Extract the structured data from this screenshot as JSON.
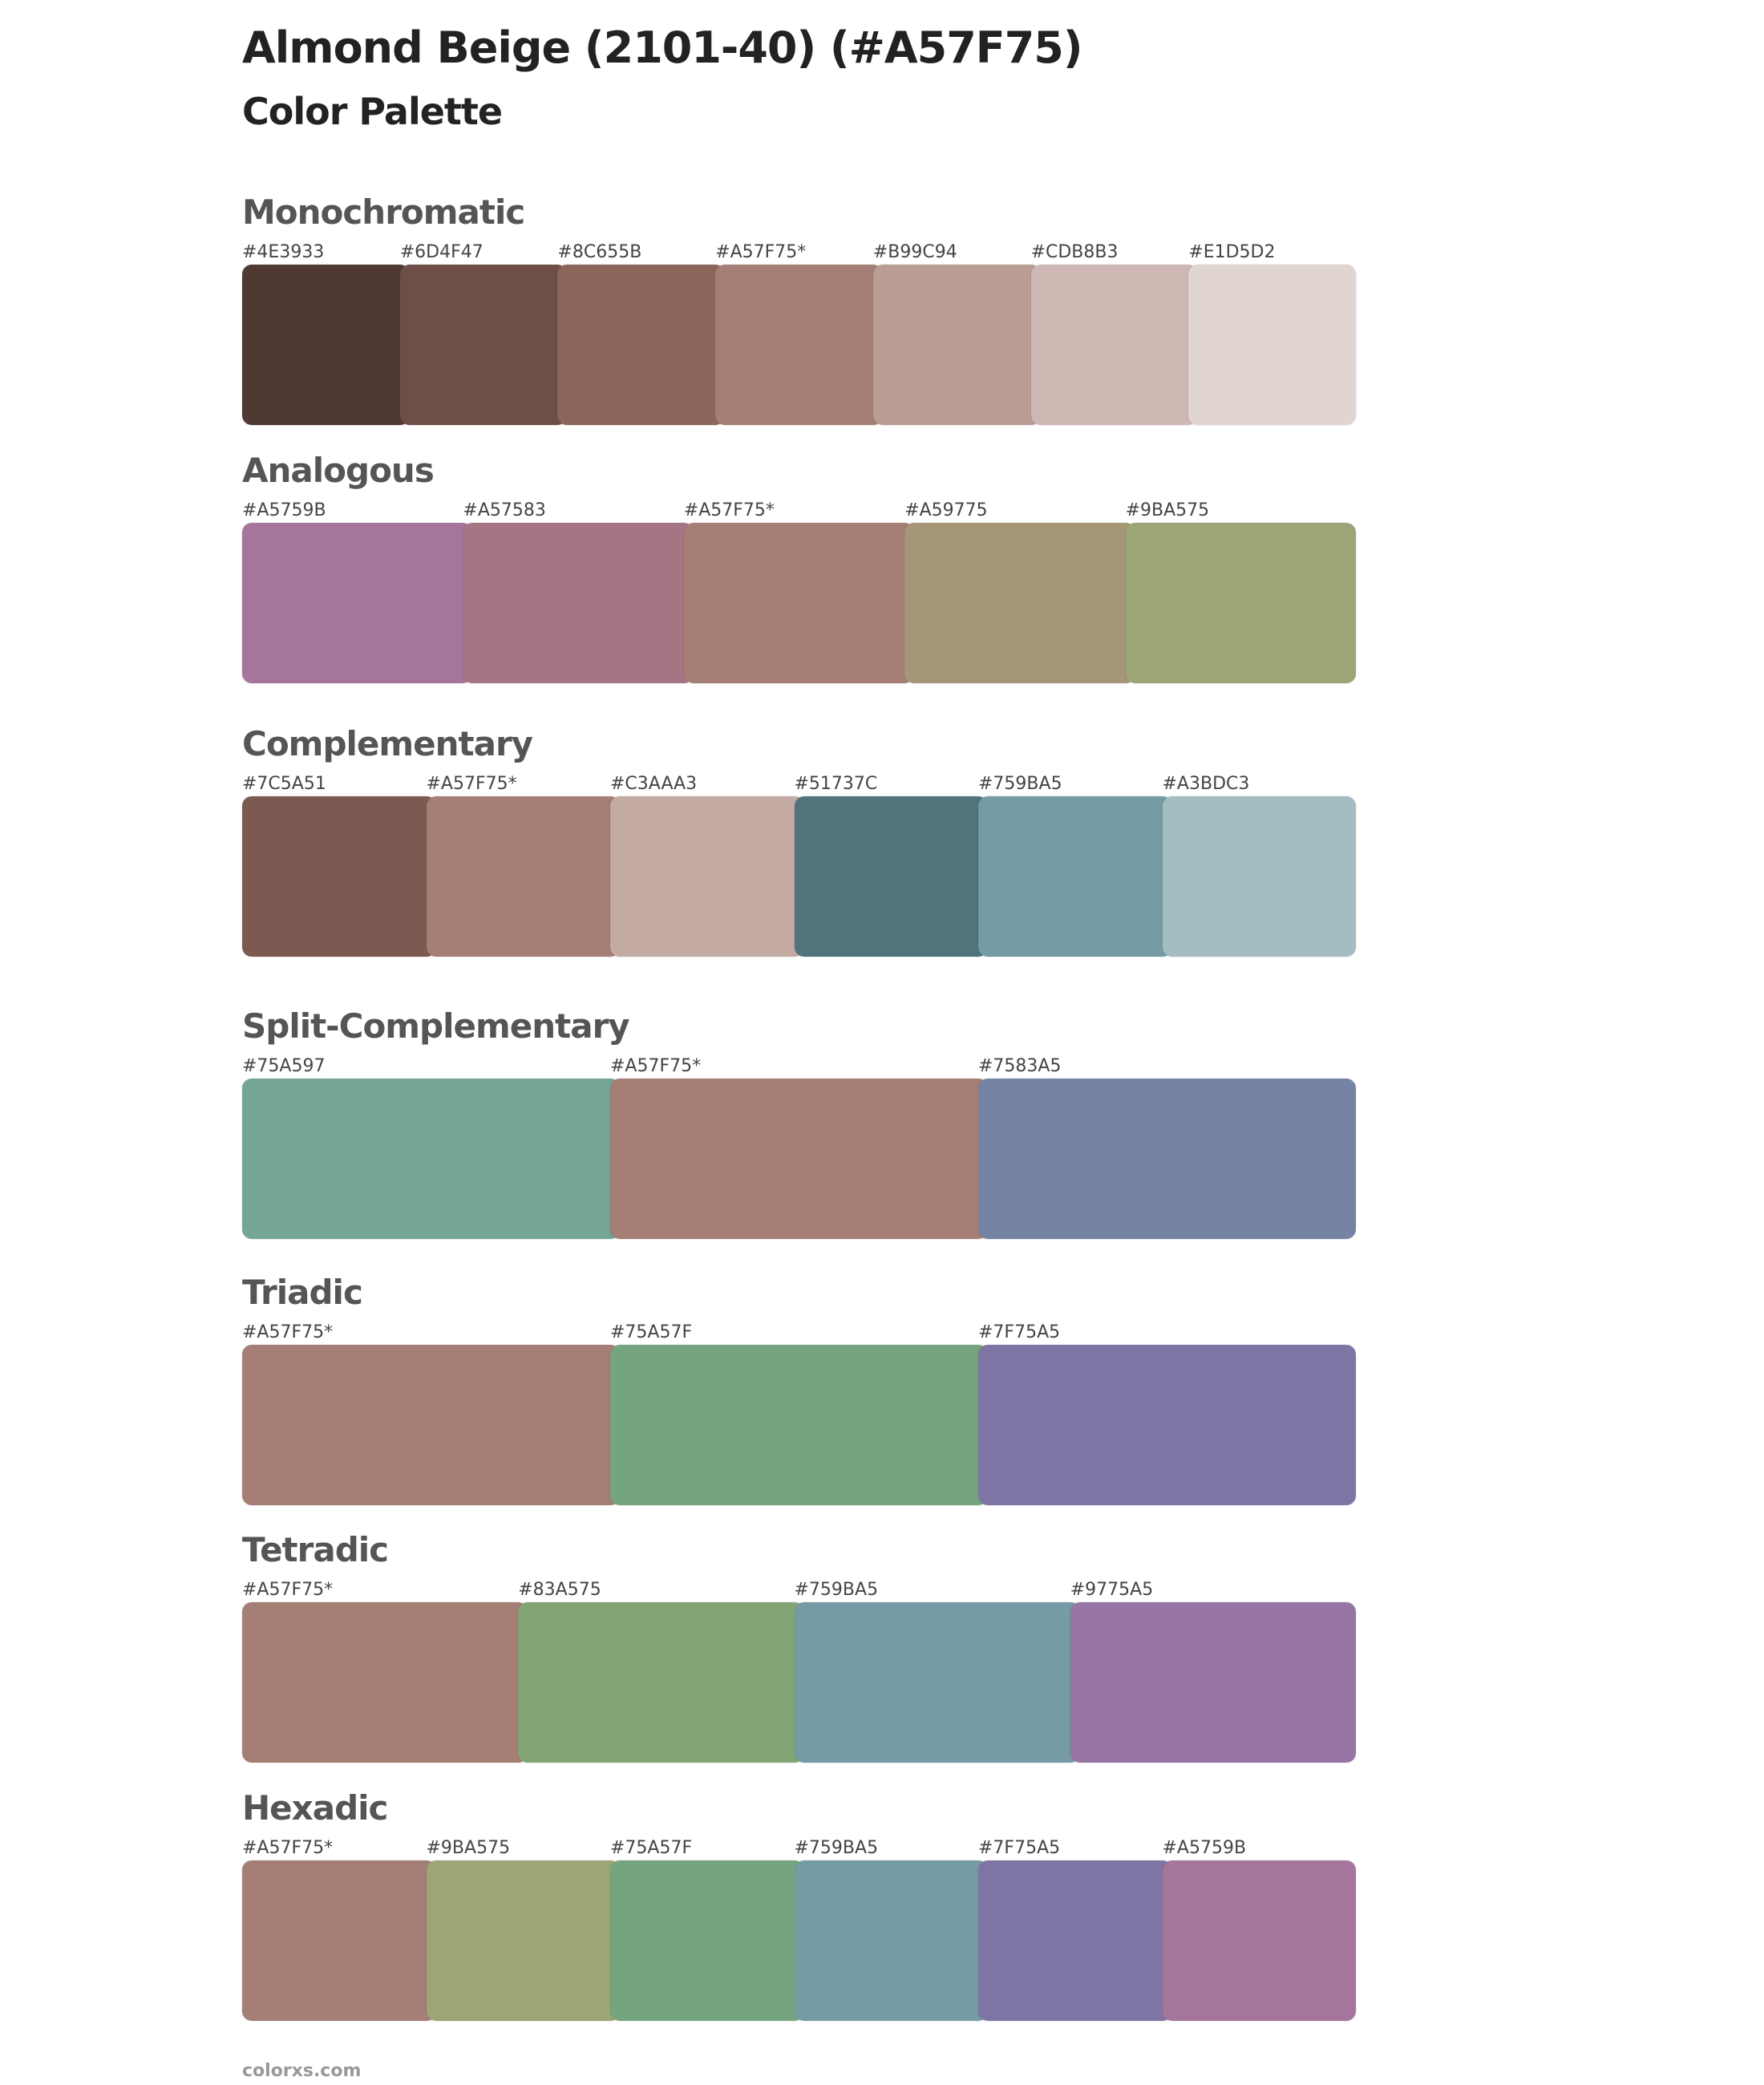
{
  "header": {
    "title": "Almond Beige (2101-40) (#A57F75)",
    "subtitle": "Color Palette"
  },
  "sections": [
    {
      "name": "Monochromatic",
      "swatches": [
        {
          "label": "#4E3933",
          "color": "#4E3933"
        },
        {
          "label": "#6D4F47",
          "color": "#6D4F47"
        },
        {
          "label": "#8C655B",
          "color": "#8C655B"
        },
        {
          "label": "#A57F75*",
          "color": "#A57F75"
        },
        {
          "label": "#B99C94",
          "color": "#B99C94"
        },
        {
          "label": "#CDB8B3",
          "color": "#CDB8B3"
        },
        {
          "label": "#E1D5D2",
          "color": "#E1D5D2"
        }
      ]
    },
    {
      "name": "Analogous",
      "swatches": [
        {
          "label": "#A5759B",
          "color": "#A5759B"
        },
        {
          "label": "#A57583",
          "color": "#A57583"
        },
        {
          "label": "#A57F75*",
          "color": "#A57F75"
        },
        {
          "label": "#A59775",
          "color": "#A59775"
        },
        {
          "label": "#9BA575",
          "color": "#9BA575"
        }
      ]
    },
    {
      "name": "Complementary",
      "swatches": [
        {
          "label": "#7C5A51",
          "color": "#7C5A51"
        },
        {
          "label": "#A57F75*",
          "color": "#A57F75"
        },
        {
          "label": "#C3AAA3",
          "color": "#C3AAA3"
        },
        {
          "label": "#51737C",
          "color": "#51737C"
        },
        {
          "label": "#759BA5",
          "color": "#759BA5"
        },
        {
          "label": "#A3BDC3",
          "color": "#A3BDC3"
        }
      ]
    },
    {
      "name": "Split-Complementary",
      "swatches": [
        {
          "label": "#75A597",
          "color": "#75A597"
        },
        {
          "label": "#A57F75*",
          "color": "#A57F75"
        },
        {
          "label": "#7583A5",
          "color": "#7583A5"
        }
      ]
    },
    {
      "name": "Triadic",
      "swatches": [
        {
          "label": "#A57F75*",
          "color": "#A57F75"
        },
        {
          "label": "#75A57F",
          "color": "#75A57F"
        },
        {
          "label": "#7F75A5",
          "color": "#7F75A5"
        }
      ]
    },
    {
      "name": "Tetradic",
      "swatches": [
        {
          "label": "#A57F75*",
          "color": "#A57F75"
        },
        {
          "label": "#83A575",
          "color": "#83A575"
        },
        {
          "label": "#759BA5",
          "color": "#759BA5"
        },
        {
          "label": "#9775A5",
          "color": "#9775A5"
        }
      ]
    },
    {
      "name": "Hexadic",
      "swatches": [
        {
          "label": "#A57F75*",
          "color": "#A57F75"
        },
        {
          "label": "#9BA575",
          "color": "#9BA575"
        },
        {
          "label": "#75A57F",
          "color": "#75A57F"
        },
        {
          "label": "#759BA5",
          "color": "#759BA5"
        },
        {
          "label": "#7F75A5",
          "color": "#7F75A5"
        },
        {
          "label": "#A5759B",
          "color": "#A5759B"
        }
      ]
    }
  ],
  "footer": "colorxs.com"
}
